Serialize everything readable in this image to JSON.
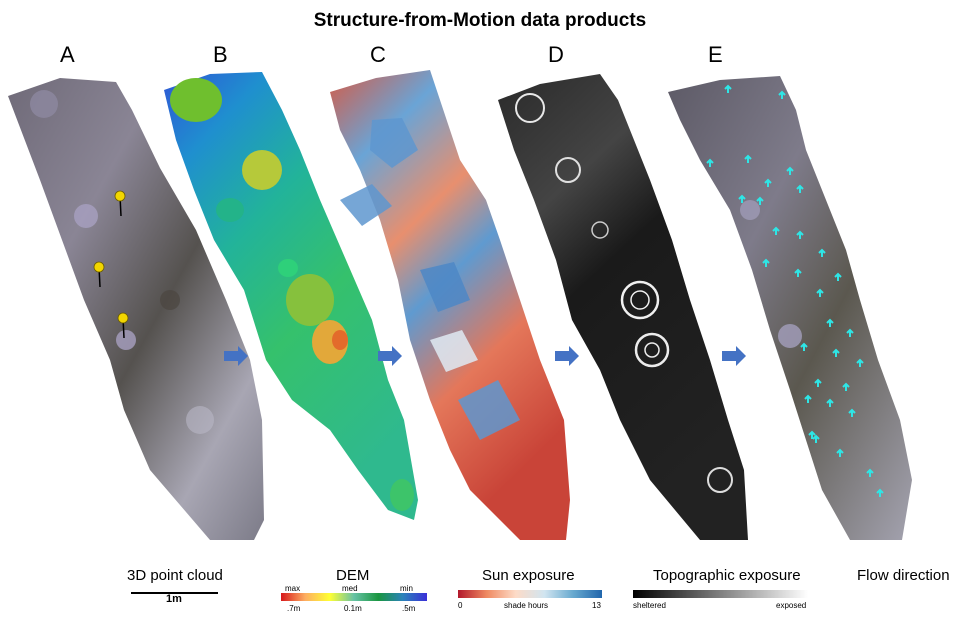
{
  "title": "Structure-from-Motion data products",
  "panels": [
    {
      "letter": "A",
      "caption": "3D point cloud"
    },
    {
      "letter": "B",
      "caption": "DEM"
    },
    {
      "letter": "C",
      "caption": "Sun exposure"
    },
    {
      "letter": "D",
      "caption": "Topographic exposure"
    },
    {
      "letter": "E",
      "caption": "Flow direction"
    }
  ],
  "scale_bar": {
    "label": "1m"
  },
  "dem_legend": {
    "top_labels": [
      "max",
      "med",
      "min"
    ],
    "bottom_labels": [
      ".7m",
      "0.1m",
      ".5m"
    ],
    "colors": [
      "#d7191c",
      "#fdae61",
      "#ffff33",
      "#66c2a5",
      "#1a9641",
      "#2b83ba",
      "#3a2fd8"
    ]
  },
  "sun_legend": {
    "min": "0",
    "mid": "shade hours",
    "max": "13",
    "colors": [
      "#b2182b",
      "#ef8a62",
      "#fddbc7",
      "#d1e5f0",
      "#67a9cf",
      "#2166ac"
    ]
  },
  "topo_legend": {
    "low": "sheltered",
    "high": "exposed",
    "colors": [
      "#000000",
      "#ffffff"
    ]
  },
  "arrow_color": "#4472c4",
  "marker_color": "#f2d600",
  "flow_arrow_color": "#2ee6e6"
}
